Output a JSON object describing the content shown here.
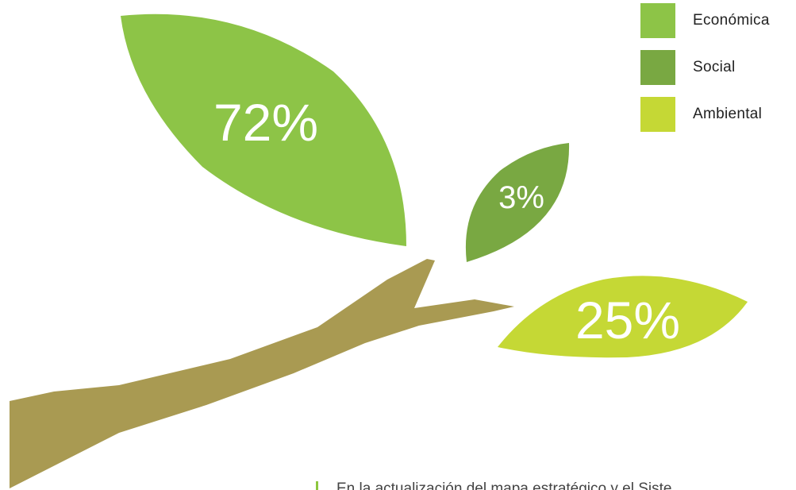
{
  "chart_data": {
    "type": "pie",
    "title": "",
    "categories": [
      "Económica",
      "Social",
      "Ambiental"
    ],
    "values": [
      72,
      3,
      25
    ],
    "value_labels": [
      "72%",
      "3%",
      "25%"
    ],
    "colors": [
      "#8dc447",
      "#79a842",
      "#c5d835"
    ],
    "legend_position": "top-right"
  },
  "legend": {
    "items": [
      {
        "label": "Económica",
        "color": "#8dc447"
      },
      {
        "label": "Social",
        "color": "#79a842"
      },
      {
        "label": "Ambiental",
        "color": "#c5d835"
      }
    ]
  },
  "caption": {
    "text": "En la actualización del mapa estratégico y el Siste"
  },
  "colors": {
    "branch": "#a99a52",
    "label_text": "#ffffff"
  }
}
